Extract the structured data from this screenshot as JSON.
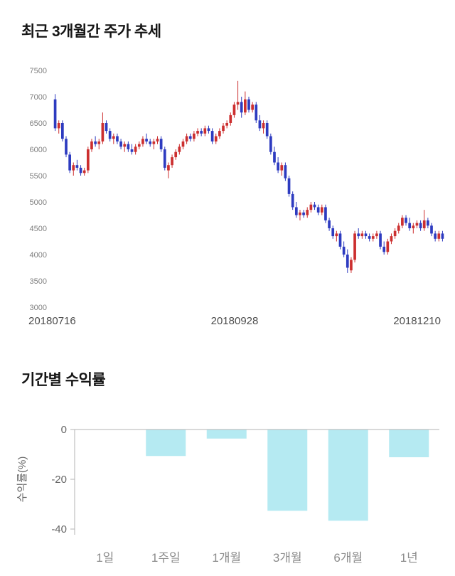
{
  "chart_data": [
    {
      "type": "candlestick",
      "title": "최근 3개월간 주가 추세",
      "x_labels": [
        "20180716",
        "20180928",
        "20181210"
      ],
      "y_ticks": [
        3000,
        3500,
        4000,
        4500,
        5000,
        5500,
        6000,
        6500,
        7000,
        7500
      ],
      "y_range": [
        3000,
        7500
      ],
      "up_color": "#cc2f2f",
      "down_color": "#2d3bc0",
      "candles": [
        [
          6950,
          7050,
          6350,
          6400
        ],
        [
          6400,
          6550,
          6300,
          6500
        ],
        [
          6500,
          6550,
          6150,
          6200
        ],
        [
          6200,
          6250,
          5850,
          5900
        ],
        [
          5900,
          5950,
          5550,
          5600
        ],
        [
          5600,
          5750,
          5500,
          5700
        ],
        [
          5700,
          5800,
          5600,
          5650
        ],
        [
          5650,
          5700,
          5500,
          5550
        ],
        [
          5550,
          5650,
          5500,
          5600
        ],
        [
          5600,
          6050,
          5550,
          6000
        ],
        [
          6000,
          6200,
          5950,
          6150
        ],
        [
          6150,
          6250,
          6050,
          6100
        ],
        [
          6100,
          6200,
          6000,
          6150
        ],
        [
          6150,
          6700,
          6100,
          6500
        ],
        [
          6500,
          6550,
          6300,
          6350
        ],
        [
          6350,
          6400,
          6150,
          6200
        ],
        [
          6200,
          6300,
          6100,
          6250
        ],
        [
          6250,
          6300,
          6100,
          6150
        ],
        [
          6150,
          6200,
          6000,
          6050
        ],
        [
          6050,
          6150,
          5950,
          6100
        ],
        [
          6100,
          6150,
          5950,
          6000
        ],
        [
          6000,
          6100,
          5900,
          5950
        ],
        [
          5950,
          6100,
          5900,
          6050
        ],
        [
          6050,
          6150,
          6000,
          6100
        ],
        [
          6100,
          6250,
          6050,
          6200
        ],
        [
          6200,
          6300,
          6100,
          6150
        ],
        [
          6150,
          6200,
          6050,
          6100
        ],
        [
          6100,
          6200,
          6000,
          6150
        ],
        [
          6150,
          6250,
          6100,
          6200
        ],
        [
          6200,
          6250,
          5950,
          6000
        ],
        [
          6000,
          6050,
          5600,
          5650
        ],
        [
          5600,
          5750,
          5450,
          5700
        ],
        [
          5700,
          5900,
          5650,
          5850
        ],
        [
          5850,
          6000,
          5800,
          5950
        ],
        [
          5950,
          6100,
          5900,
          6050
        ],
        [
          6050,
          6200,
          6000,
          6150
        ],
        [
          6150,
          6300,
          6100,
          6250
        ],
        [
          6250,
          6300,
          6150,
          6200
        ],
        [
          6200,
          6350,
          6150,
          6300
        ],
        [
          6300,
          6400,
          6250,
          6350
        ],
        [
          6350,
          6400,
          6250,
          6300
        ],
        [
          6300,
          6450,
          6250,
          6400
        ],
        [
          6400,
          6450,
          6300,
          6350
        ],
        [
          6350,
          6400,
          6100,
          6150
        ],
        [
          6150,
          6300,
          6100,
          6250
        ],
        [
          6250,
          6400,
          6200,
          6350
        ],
        [
          6350,
          6500,
          6300,
          6450
        ],
        [
          6450,
          6550,
          6400,
          6500
        ],
        [
          6500,
          6700,
          6450,
          6650
        ],
        [
          6650,
          6900,
          6600,
          6850
        ],
        [
          6850,
          7300,
          6750,
          6900
        ],
        [
          6900,
          7000,
          6600,
          6700
        ],
        [
          6700,
          7100,
          6650,
          6950
        ],
        [
          6950,
          7000,
          6700,
          6750
        ],
        [
          6750,
          6900,
          6700,
          6850
        ],
        [
          6850,
          6900,
          6500,
          6550
        ],
        [
          6550,
          6650,
          6350,
          6400
        ],
        [
          6400,
          6550,
          6300,
          6500
        ],
        [
          6500,
          6550,
          6200,
          6250
        ],
        [
          6250,
          6300,
          5900,
          5950
        ],
        [
          5950,
          6050,
          5700,
          5750
        ],
        [
          5750,
          5850,
          5550,
          5600
        ],
        [
          5600,
          5750,
          5500,
          5700
        ],
        [
          5700,
          5750,
          5400,
          5450
        ],
        [
          5450,
          5500,
          5100,
          5150
        ],
        [
          5150,
          5200,
          4850,
          4900
        ],
        [
          4900,
          5000,
          4700,
          4750
        ],
        [
          4750,
          4850,
          4650,
          4800
        ],
        [
          4800,
          4850,
          4700,
          4750
        ],
        [
          4750,
          4900,
          4700,
          4850
        ],
        [
          4850,
          5000,
          4800,
          4950
        ],
        [
          4950,
          5000,
          4850,
          4900
        ],
        [
          4900,
          4950,
          4750,
          4800
        ],
        [
          4800,
          4950,
          4750,
          4900
        ],
        [
          4900,
          4950,
          4600,
          4650
        ],
        [
          4650,
          4700,
          4450,
          4500
        ],
        [
          4500,
          4550,
          4300,
          4350
        ],
        [
          4350,
          4450,
          4250,
          4400
        ],
        [
          4400,
          4450,
          4100,
          4150
        ],
        [
          4150,
          4250,
          3950,
          4000
        ],
        [
          4000,
          4100,
          3650,
          3750
        ],
        [
          3700,
          3950,
          3650,
          3900
        ],
        [
          3900,
          4450,
          3850,
          4400
        ],
        [
          4400,
          4500,
          4300,
          4350
        ],
        [
          4350,
          4450,
          4300,
          4400
        ],
        [
          4400,
          4450,
          4300,
          4350
        ],
        [
          4350,
          4400,
          4250,
          4300
        ],
        [
          4300,
          4400,
          4250,
          4350
        ],
        [
          4350,
          4450,
          4300,
          4400
        ],
        [
          4400,
          4450,
          4100,
          4150
        ],
        [
          4150,
          4250,
          4000,
          4050
        ],
        [
          4050,
          4300,
          4000,
          4250
        ],
        [
          4250,
          4400,
          4200,
          4350
        ],
        [
          4350,
          4500,
          4300,
          4450
        ],
        [
          4450,
          4600,
          4400,
          4550
        ],
        [
          4550,
          4750,
          4500,
          4700
        ],
        [
          4700,
          4750,
          4550,
          4600
        ],
        [
          4600,
          4700,
          4450,
          4500
        ],
        [
          4500,
          4600,
          4400,
          4550
        ],
        [
          4550,
          4650,
          4500,
          4600
        ],
        [
          4600,
          4650,
          4450,
          4500
        ],
        [
          4500,
          4850,
          4450,
          4650
        ],
        [
          4650,
          4700,
          4500,
          4550
        ],
        [
          4550,
          4600,
          4350,
          4400
        ],
        [
          4400,
          4450,
          4250,
          4300
        ],
        [
          4300,
          4450,
          4250,
          4400
        ],
        [
          4400,
          4450,
          4250,
          4300
        ]
      ]
    },
    {
      "type": "bar",
      "title": "기간별 수익률",
      "ylabel": "수익률(%)",
      "categories": [
        "1일",
        "1주일",
        "1개월",
        "3개월",
        "6개월",
        "1년"
      ],
      "values": [
        0,
        -10.5,
        -3.5,
        -32.5,
        -36.5,
        -11
      ],
      "y_ticks": [
        0,
        -20,
        -40
      ],
      "ylim": [
        -40,
        0
      ],
      "bar_color": "#b5eaf2",
      "axis_color": "#b3b3b3",
      "grid": false,
      "legend": "none"
    }
  ]
}
